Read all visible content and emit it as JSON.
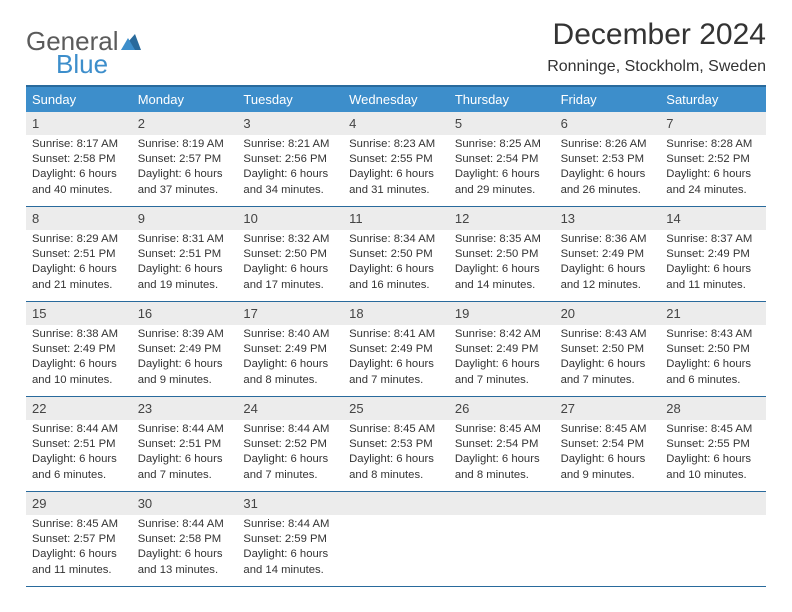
{
  "logo": {
    "general": "General",
    "blue": "Blue"
  },
  "title": "December 2024",
  "location": "Ronninge, Stockholm, Sweden",
  "colors": {
    "header_bg": "#3d8ecb",
    "border": "#296a9c",
    "daynum_bg": "#ececec",
    "text": "#333333"
  },
  "dayNames": [
    "Sunday",
    "Monday",
    "Tuesday",
    "Wednesday",
    "Thursday",
    "Friday",
    "Saturday"
  ],
  "weeks": [
    [
      {
        "n": "1",
        "sr": "Sunrise: 8:17 AM",
        "ss": "Sunset: 2:58 PM",
        "d1": "Daylight: 6 hours",
        "d2": "and 40 minutes."
      },
      {
        "n": "2",
        "sr": "Sunrise: 8:19 AM",
        "ss": "Sunset: 2:57 PM",
        "d1": "Daylight: 6 hours",
        "d2": "and 37 minutes."
      },
      {
        "n": "3",
        "sr": "Sunrise: 8:21 AM",
        "ss": "Sunset: 2:56 PM",
        "d1": "Daylight: 6 hours",
        "d2": "and 34 minutes."
      },
      {
        "n": "4",
        "sr": "Sunrise: 8:23 AM",
        "ss": "Sunset: 2:55 PM",
        "d1": "Daylight: 6 hours",
        "d2": "and 31 minutes."
      },
      {
        "n": "5",
        "sr": "Sunrise: 8:25 AM",
        "ss": "Sunset: 2:54 PM",
        "d1": "Daylight: 6 hours",
        "d2": "and 29 minutes."
      },
      {
        "n": "6",
        "sr": "Sunrise: 8:26 AM",
        "ss": "Sunset: 2:53 PM",
        "d1": "Daylight: 6 hours",
        "d2": "and 26 minutes."
      },
      {
        "n": "7",
        "sr": "Sunrise: 8:28 AM",
        "ss": "Sunset: 2:52 PM",
        "d1": "Daylight: 6 hours",
        "d2": "and 24 minutes."
      }
    ],
    [
      {
        "n": "8",
        "sr": "Sunrise: 8:29 AM",
        "ss": "Sunset: 2:51 PM",
        "d1": "Daylight: 6 hours",
        "d2": "and 21 minutes."
      },
      {
        "n": "9",
        "sr": "Sunrise: 8:31 AM",
        "ss": "Sunset: 2:51 PM",
        "d1": "Daylight: 6 hours",
        "d2": "and 19 minutes."
      },
      {
        "n": "10",
        "sr": "Sunrise: 8:32 AM",
        "ss": "Sunset: 2:50 PM",
        "d1": "Daylight: 6 hours",
        "d2": "and 17 minutes."
      },
      {
        "n": "11",
        "sr": "Sunrise: 8:34 AM",
        "ss": "Sunset: 2:50 PM",
        "d1": "Daylight: 6 hours",
        "d2": "and 16 minutes."
      },
      {
        "n": "12",
        "sr": "Sunrise: 8:35 AM",
        "ss": "Sunset: 2:50 PM",
        "d1": "Daylight: 6 hours",
        "d2": "and 14 minutes."
      },
      {
        "n": "13",
        "sr": "Sunrise: 8:36 AM",
        "ss": "Sunset: 2:49 PM",
        "d1": "Daylight: 6 hours",
        "d2": "and 12 minutes."
      },
      {
        "n": "14",
        "sr": "Sunrise: 8:37 AM",
        "ss": "Sunset: 2:49 PM",
        "d1": "Daylight: 6 hours",
        "d2": "and 11 minutes."
      }
    ],
    [
      {
        "n": "15",
        "sr": "Sunrise: 8:38 AM",
        "ss": "Sunset: 2:49 PM",
        "d1": "Daylight: 6 hours",
        "d2": "and 10 minutes."
      },
      {
        "n": "16",
        "sr": "Sunrise: 8:39 AM",
        "ss": "Sunset: 2:49 PM",
        "d1": "Daylight: 6 hours",
        "d2": "and 9 minutes."
      },
      {
        "n": "17",
        "sr": "Sunrise: 8:40 AM",
        "ss": "Sunset: 2:49 PM",
        "d1": "Daylight: 6 hours",
        "d2": "and 8 minutes."
      },
      {
        "n": "18",
        "sr": "Sunrise: 8:41 AM",
        "ss": "Sunset: 2:49 PM",
        "d1": "Daylight: 6 hours",
        "d2": "and 7 minutes."
      },
      {
        "n": "19",
        "sr": "Sunrise: 8:42 AM",
        "ss": "Sunset: 2:49 PM",
        "d1": "Daylight: 6 hours",
        "d2": "and 7 minutes."
      },
      {
        "n": "20",
        "sr": "Sunrise: 8:43 AM",
        "ss": "Sunset: 2:50 PM",
        "d1": "Daylight: 6 hours",
        "d2": "and 7 minutes."
      },
      {
        "n": "21",
        "sr": "Sunrise: 8:43 AM",
        "ss": "Sunset: 2:50 PM",
        "d1": "Daylight: 6 hours",
        "d2": "and 6 minutes."
      }
    ],
    [
      {
        "n": "22",
        "sr": "Sunrise: 8:44 AM",
        "ss": "Sunset: 2:51 PM",
        "d1": "Daylight: 6 hours",
        "d2": "and 6 minutes."
      },
      {
        "n": "23",
        "sr": "Sunrise: 8:44 AM",
        "ss": "Sunset: 2:51 PM",
        "d1": "Daylight: 6 hours",
        "d2": "and 7 minutes."
      },
      {
        "n": "24",
        "sr": "Sunrise: 8:44 AM",
        "ss": "Sunset: 2:52 PM",
        "d1": "Daylight: 6 hours",
        "d2": "and 7 minutes."
      },
      {
        "n": "25",
        "sr": "Sunrise: 8:45 AM",
        "ss": "Sunset: 2:53 PM",
        "d1": "Daylight: 6 hours",
        "d2": "and 8 minutes."
      },
      {
        "n": "26",
        "sr": "Sunrise: 8:45 AM",
        "ss": "Sunset: 2:54 PM",
        "d1": "Daylight: 6 hours",
        "d2": "and 8 minutes."
      },
      {
        "n": "27",
        "sr": "Sunrise: 8:45 AM",
        "ss": "Sunset: 2:54 PM",
        "d1": "Daylight: 6 hours",
        "d2": "and 9 minutes."
      },
      {
        "n": "28",
        "sr": "Sunrise: 8:45 AM",
        "ss": "Sunset: 2:55 PM",
        "d1": "Daylight: 6 hours",
        "d2": "and 10 minutes."
      }
    ],
    [
      {
        "n": "29",
        "sr": "Sunrise: 8:45 AM",
        "ss": "Sunset: 2:57 PM",
        "d1": "Daylight: 6 hours",
        "d2": "and 11 minutes."
      },
      {
        "n": "30",
        "sr": "Sunrise: 8:44 AM",
        "ss": "Sunset: 2:58 PM",
        "d1": "Daylight: 6 hours",
        "d2": "and 13 minutes."
      },
      {
        "n": "31",
        "sr": "Sunrise: 8:44 AM",
        "ss": "Sunset: 2:59 PM",
        "d1": "Daylight: 6 hours",
        "d2": "and 14 minutes."
      },
      {
        "empty": true
      },
      {
        "empty": true
      },
      {
        "empty": true
      },
      {
        "empty": true
      }
    ]
  ]
}
